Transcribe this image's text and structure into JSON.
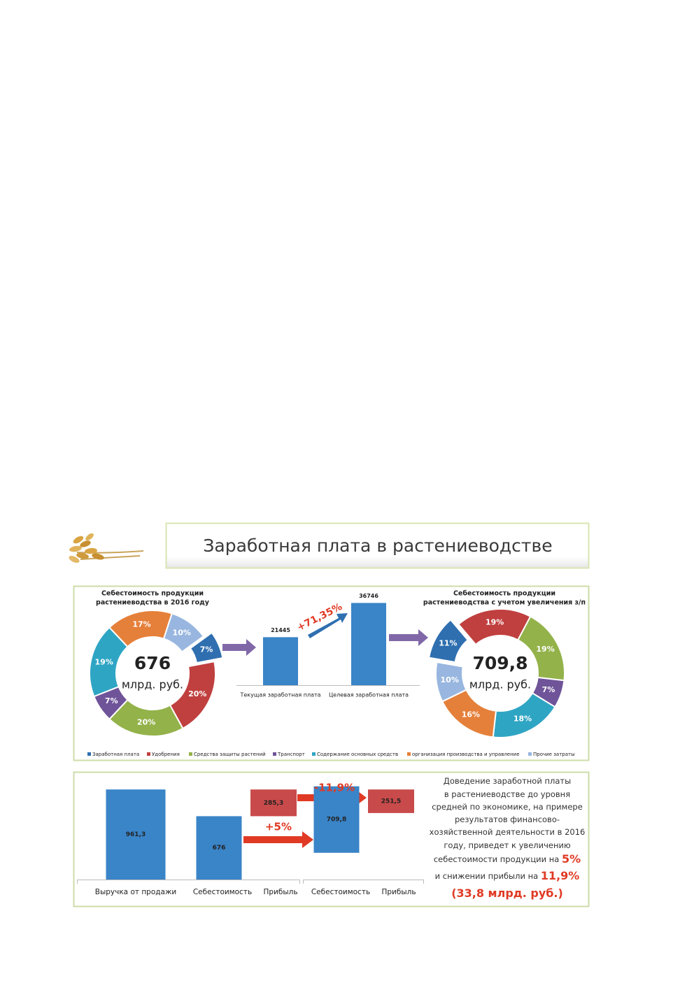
{
  "title": "Заработная плата в растениеводстве",
  "chart_data": [
    {
      "type": "pie",
      "title": [
        "Себестоимость продукции",
        "растениеводства в 2016 году"
      ],
      "center_value": "676",
      "center_unit": "млрд. руб.",
      "categories": [
        "Заработная плата",
        "Удобрения",
        "Средства защиты растений",
        "Транспорт",
        "Содержание основных средств",
        "организация производства и управление",
        "Прочие затраты"
      ],
      "values": [
        7,
        20,
        20,
        7,
        19,
        17,
        10
      ],
      "value_labels": [
        "7%",
        "20%",
        "20%",
        "7%",
        "19%",
        "17%",
        "10%"
      ],
      "colors": [
        "#2f6fb0",
        "#c0403f",
        "#93b24a",
        "#6f5499",
        "#2fa5c4",
        "#e5803a",
        "#98b6df"
      ],
      "explode": true
    },
    {
      "type": "bar",
      "categories": [
        "Текущая заработная плата",
        "Целевая заработная плата"
      ],
      "values": [
        21445,
        36746
      ],
      "ylim": [
        0,
        40000
      ],
      "color": "#3a84c8",
      "annotation": "+71,35%"
    },
    {
      "type": "pie",
      "title": [
        "Себестоимость продукции",
        "растениеводства с  учетом увеличения з/п"
      ],
      "center_value": "709,8",
      "center_unit": "млрд. руб.",
      "values": [
        11,
        19,
        19,
        7,
        18,
        16,
        10
      ],
      "value_labels": [
        "11%",
        "19%",
        "19%",
        "7%",
        "18%",
        "16%",
        "10%"
      ],
      "colors": [
        "#2f6fb0",
        "#c0403f",
        "#93b24a",
        "#6f5499",
        "#2fa5c4",
        "#e5803a",
        "#98b6df"
      ],
      "explode": true
    },
    {
      "type": "waterfall",
      "categories": [
        "Выручка от продажи",
        "Себестоимость",
        "Прибыль",
        "Себестоимость",
        "Прибыль"
      ],
      "values": [
        961.3,
        676,
        285.3,
        709.8,
        251.5
      ],
      "value_labels": [
        "961,3",
        "676",
        "285,3",
        "709,8",
        "251,5"
      ],
      "colors": [
        "#3a84c8",
        "#3a84c8",
        "#c94a4a",
        "#3a84c8",
        "#c94a4a"
      ],
      "ylim": [
        0,
        1000
      ],
      "annotations": [
        "-11,9%",
        "+5%"
      ]
    }
  ],
  "note": {
    "lines": [
      {
        "text": "Доведение заработной платы"
      },
      {
        "text": "в растениеводстве до уровня"
      },
      {
        "text": "средней по экономике, на примере"
      },
      {
        "text": "результатов  финансово-"
      },
      {
        "text": "хозяйственной деятельности в 2016"
      },
      {
        "text": "году, приведет к увеличению"
      },
      {
        "text": "себестоимости продукции на ",
        "accent": "5%"
      },
      {
        "text": "и снижении прибыли на ",
        "accent": "11,9%"
      },
      {
        "accent": "(33,8 млрд. руб.)"
      }
    ]
  }
}
